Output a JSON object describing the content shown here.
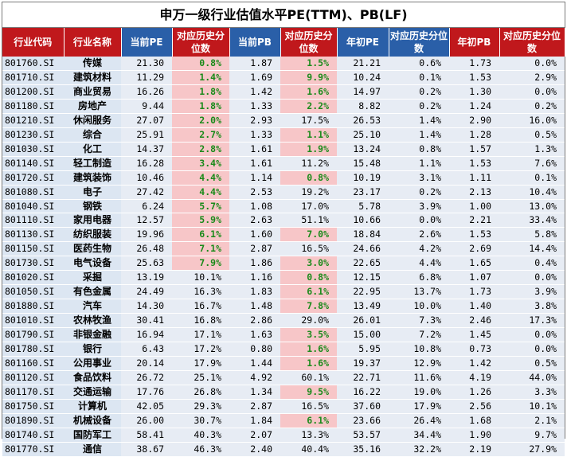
{
  "title": "申万一级行业估值水平PE(TTM)、PB(LF)",
  "colors": {
    "header_red": "#c0181c",
    "header_blue": "#2a5fa8",
    "cell_blue": "#dce6f2",
    "highlight_pink": "#f7c6c8",
    "highlight_text_green": "#1a8a1a"
  },
  "headers": {
    "code": "行业代码",
    "name": "行业名称",
    "cur_pe": "当前PE",
    "pe_pct": "对应历史分位数",
    "cur_pb": "当前PB",
    "pb_pct": "对应历史分位数",
    "start_pe": "年初PE",
    "start_pe_pct": "对应历史分位数",
    "start_pb": "年初PB",
    "start_pb_pct": "对应历史分位数"
  },
  "rows": [
    {
      "code": "801760.SI",
      "name": "传媒",
      "cur_pe": "21.30",
      "pe_pct": "0.8%",
      "cur_pb": "1.87",
      "pb_pct": "1.5%",
      "start_pe": "21.21",
      "start_pe_pct": "0.6%",
      "start_pb": "1.73",
      "start_pb_pct": "0.0%",
      "pe_hi": true,
      "pb_hi": true
    },
    {
      "code": "801710.SI",
      "name": "建筑材料",
      "cur_pe": "11.29",
      "pe_pct": "1.4%",
      "cur_pb": "1.69",
      "pb_pct": "9.9%",
      "start_pe": "10.24",
      "start_pe_pct": "0.1%",
      "start_pb": "1.53",
      "start_pb_pct": "2.9%",
      "pe_hi": true,
      "pb_hi": true
    },
    {
      "code": "801200.SI",
      "name": "商业贸易",
      "cur_pe": "16.26",
      "pe_pct": "1.8%",
      "cur_pb": "1.42",
      "pb_pct": "1.6%",
      "start_pe": "14.97",
      "start_pe_pct": "0.2%",
      "start_pb": "1.30",
      "start_pb_pct": "0.0%",
      "pe_hi": true,
      "pb_hi": true
    },
    {
      "code": "801180.SI",
      "name": "房地产",
      "cur_pe": "9.44",
      "pe_pct": "1.8%",
      "cur_pb": "1.33",
      "pb_pct": "2.2%",
      "start_pe": "8.82",
      "start_pe_pct": "0.2%",
      "start_pb": "1.24",
      "start_pb_pct": "0.2%",
      "pe_hi": true,
      "pb_hi": true
    },
    {
      "code": "801210.SI",
      "name": "休闲服务",
      "cur_pe": "27.07",
      "pe_pct": "2.0%",
      "cur_pb": "2.93",
      "pb_pct": "17.5%",
      "start_pe": "26.53",
      "start_pe_pct": "1.4%",
      "start_pb": "2.90",
      "start_pb_pct": "16.0%",
      "pe_hi": true,
      "pb_hi": false
    },
    {
      "code": "801230.SI",
      "name": "综合",
      "cur_pe": "25.91",
      "pe_pct": "2.7%",
      "cur_pb": "1.33",
      "pb_pct": "1.1%",
      "start_pe": "25.10",
      "start_pe_pct": "1.4%",
      "start_pb": "1.28",
      "start_pb_pct": "0.5%",
      "pe_hi": true,
      "pb_hi": true
    },
    {
      "code": "801030.SI",
      "name": "化工",
      "cur_pe": "14.37",
      "pe_pct": "2.8%",
      "cur_pb": "1.61",
      "pb_pct": "1.9%",
      "start_pe": "13.24",
      "start_pe_pct": "0.8%",
      "start_pb": "1.57",
      "start_pb_pct": "1.3%",
      "pe_hi": true,
      "pb_hi": true
    },
    {
      "code": "801140.SI",
      "name": "轻工制造",
      "cur_pe": "16.28",
      "pe_pct": "3.4%",
      "cur_pb": "1.61",
      "pb_pct": "11.2%",
      "start_pe": "15.48",
      "start_pe_pct": "1.1%",
      "start_pb": "1.53",
      "start_pb_pct": "7.6%",
      "pe_hi": true,
      "pb_hi": false
    },
    {
      "code": "801720.SI",
      "name": "建筑装饰",
      "cur_pe": "10.46",
      "pe_pct": "4.4%",
      "cur_pb": "1.14",
      "pb_pct": "0.8%",
      "start_pe": "10.19",
      "start_pe_pct": "3.1%",
      "start_pb": "1.11",
      "start_pb_pct": "0.1%",
      "pe_hi": true,
      "pb_hi": true
    },
    {
      "code": "801080.SI",
      "name": "电子",
      "cur_pe": "27.42",
      "pe_pct": "4.4%",
      "cur_pb": "2.53",
      "pb_pct": "19.2%",
      "start_pe": "23.17",
      "start_pe_pct": "0.2%",
      "start_pb": "2.13",
      "start_pb_pct": "10.4%",
      "pe_hi": true,
      "pb_hi": false
    },
    {
      "code": "801040.SI",
      "name": "钢铁",
      "cur_pe": "6.24",
      "pe_pct": "5.7%",
      "cur_pb": "1.08",
      "pb_pct": "17.0%",
      "start_pe": "5.78",
      "start_pe_pct": "3.9%",
      "start_pb": "1.00",
      "start_pb_pct": "13.0%",
      "pe_hi": true,
      "pb_hi": false
    },
    {
      "code": "801110.SI",
      "name": "家用电器",
      "cur_pe": "12.57",
      "pe_pct": "5.9%",
      "cur_pb": "2.63",
      "pb_pct": "51.1%",
      "start_pe": "10.66",
      "start_pe_pct": "0.0%",
      "start_pb": "2.21",
      "start_pb_pct": "33.4%",
      "pe_hi": true,
      "pb_hi": false
    },
    {
      "code": "801130.SI",
      "name": "纺织服装",
      "cur_pe": "19.96",
      "pe_pct": "6.1%",
      "cur_pb": "1.60",
      "pb_pct": "7.0%",
      "start_pe": "18.84",
      "start_pe_pct": "2.6%",
      "start_pb": "1.53",
      "start_pb_pct": "5.8%",
      "pe_hi": true,
      "pb_hi": true
    },
    {
      "code": "801150.SI",
      "name": "医药生物",
      "cur_pe": "26.48",
      "pe_pct": "7.1%",
      "cur_pb": "2.87",
      "pb_pct": "16.5%",
      "start_pe": "24.66",
      "start_pe_pct": "4.2%",
      "start_pb": "2.69",
      "start_pb_pct": "14.4%",
      "pe_hi": true,
      "pb_hi": false
    },
    {
      "code": "801730.SI",
      "name": "电气设备",
      "cur_pe": "25.63",
      "pe_pct": "7.9%",
      "cur_pb": "1.86",
      "pb_pct": "3.0%",
      "start_pe": "22.65",
      "start_pe_pct": "4.4%",
      "start_pb": "1.65",
      "start_pb_pct": "0.4%",
      "pe_hi": true,
      "pb_hi": true
    },
    {
      "code": "801020.SI",
      "name": "采掘",
      "cur_pe": "13.19",
      "pe_pct": "10.1%",
      "cur_pb": "1.16",
      "pb_pct": "0.8%",
      "start_pe": "12.15",
      "start_pe_pct": "6.8%",
      "start_pb": "1.07",
      "start_pb_pct": "0.0%",
      "pe_hi": false,
      "pb_hi": true
    },
    {
      "code": "801050.SI",
      "name": "有色金属",
      "cur_pe": "24.49",
      "pe_pct": "16.3%",
      "cur_pb": "1.83",
      "pb_pct": "6.1%",
      "start_pe": "22.95",
      "start_pe_pct": "13.7%",
      "start_pb": "1.73",
      "start_pb_pct": "3.9%",
      "pe_hi": false,
      "pb_hi": true
    },
    {
      "code": "801880.SI",
      "name": "汽车",
      "cur_pe": "14.30",
      "pe_pct": "16.7%",
      "cur_pb": "1.48",
      "pb_pct": "7.8%",
      "start_pe": "13.49",
      "start_pe_pct": "10.0%",
      "start_pb": "1.40",
      "start_pb_pct": "3.8%",
      "pe_hi": false,
      "pb_hi": true
    },
    {
      "code": "801010.SI",
      "name": "农林牧渔",
      "cur_pe": "30.41",
      "pe_pct": "16.8%",
      "cur_pb": "2.86",
      "pb_pct": "29.0%",
      "start_pe": "26.01",
      "start_pe_pct": "7.3%",
      "start_pb": "2.46",
      "start_pb_pct": "17.3%",
      "pe_hi": false,
      "pb_hi": false
    },
    {
      "code": "801790.SI",
      "name": "非银金融",
      "cur_pe": "16.94",
      "pe_pct": "17.1%",
      "cur_pb": "1.63",
      "pb_pct": "3.5%",
      "start_pe": "15.00",
      "start_pe_pct": "7.2%",
      "start_pb": "1.45",
      "start_pb_pct": "0.0%",
      "pe_hi": false,
      "pb_hi": true
    },
    {
      "code": "801780.SI",
      "name": "银行",
      "cur_pe": "6.43",
      "pe_pct": "17.2%",
      "cur_pb": "0.80",
      "pb_pct": "1.6%",
      "start_pe": "5.95",
      "start_pe_pct": "10.8%",
      "start_pb": "0.73",
      "start_pb_pct": "0.0%",
      "pe_hi": false,
      "pb_hi": true
    },
    {
      "code": "801160.SI",
      "name": "公用事业",
      "cur_pe": "20.14",
      "pe_pct": "17.9%",
      "cur_pb": "1.44",
      "pb_pct": "1.6%",
      "start_pe": "19.37",
      "start_pe_pct": "12.9%",
      "start_pb": "1.42",
      "start_pb_pct": "0.5%",
      "pe_hi": false,
      "pb_hi": true
    },
    {
      "code": "801120.SI",
      "name": "食品饮料",
      "cur_pe": "26.72",
      "pe_pct": "25.1%",
      "cur_pb": "4.92",
      "pb_pct": "60.1%",
      "start_pe": "22.71",
      "start_pe_pct": "11.6%",
      "start_pb": "4.19",
      "start_pb_pct": "44.0%",
      "pe_hi": false,
      "pb_hi": false
    },
    {
      "code": "801170.SI",
      "name": "交通运输",
      "cur_pe": "17.76",
      "pe_pct": "26.8%",
      "cur_pb": "1.34",
      "pb_pct": "9.5%",
      "start_pe": "16.22",
      "start_pe_pct": "19.0%",
      "start_pb": "1.26",
      "start_pb_pct": "3.3%",
      "pe_hi": false,
      "pb_hi": true
    },
    {
      "code": "801750.SI",
      "name": "计算机",
      "cur_pe": "42.05",
      "pe_pct": "29.3%",
      "cur_pb": "2.87",
      "pb_pct": "16.5%",
      "start_pe": "37.60",
      "start_pe_pct": "17.9%",
      "start_pb": "2.56",
      "start_pb_pct": "10.1%",
      "pe_hi": false,
      "pb_hi": false
    },
    {
      "code": "801890.SI",
      "name": "机械设备",
      "cur_pe": "26.00",
      "pe_pct": "30.7%",
      "cur_pb": "1.84",
      "pb_pct": "6.1%",
      "start_pe": "23.66",
      "start_pe_pct": "26.4%",
      "start_pb": "1.68",
      "start_pb_pct": "2.1%",
      "pe_hi": false,
      "pb_hi": true
    },
    {
      "code": "801740.SI",
      "name": "国防军工",
      "cur_pe": "58.41",
      "pe_pct": "40.3%",
      "cur_pb": "2.07",
      "pb_pct": "13.3%",
      "start_pe": "53.57",
      "start_pe_pct": "34.4%",
      "start_pb": "1.90",
      "start_pb_pct": "9.7%",
      "pe_hi": false,
      "pb_hi": false
    },
    {
      "code": "801770.SI",
      "name": "通信",
      "cur_pe": "38.67",
      "pe_pct": "46.3%",
      "cur_pb": "2.40",
      "pb_pct": "40.4%",
      "start_pe": "35.16",
      "start_pe_pct": "32.2%",
      "start_pb": "2.19",
      "start_pb_pct": "27.9%",
      "pe_hi": false,
      "pb_hi": false
    }
  ]
}
